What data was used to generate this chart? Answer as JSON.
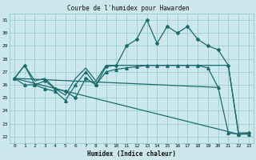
{
  "title": "Courbe de l'humidex pour Hawarden",
  "xlabel": "Humidex (Indice chaleur)",
  "bg_color": "#cce8ec",
  "grid_color": "#8ec8cc",
  "line_color": "#1a6b6e",
  "xlim": [
    -0.5,
    23.5
  ],
  "ylim": [
    21.5,
    31.5
  ],
  "yticks": [
    22,
    23,
    24,
    25,
    26,
    27,
    28,
    29,
    30,
    31
  ],
  "xticks": [
    0,
    1,
    2,
    3,
    4,
    5,
    6,
    7,
    8,
    9,
    10,
    11,
    12,
    13,
    14,
    15,
    16,
    17,
    18,
    19,
    20,
    21,
    22,
    23
  ],
  "series": [
    {
      "x": [
        0,
        1,
        2,
        3,
        4,
        5,
        6,
        7,
        8,
        9,
        10,
        11,
        12,
        13,
        14,
        15,
        16,
        17,
        18,
        19,
        20,
        21,
        22,
        23
      ],
      "y": [
        26.5,
        27.5,
        26.0,
        26.3,
        25.7,
        25.5,
        25.0,
        26.5,
        26.0,
        27.4,
        27.5,
        29.0,
        29.5,
        31.0,
        29.2,
        30.5,
        30.0,
        30.5,
        29.5,
        29.0,
        28.7,
        27.5,
        22.2,
        22.3
      ],
      "marker": "D",
      "markersize": 2.0,
      "linewidth": 0.9
    },
    {
      "x": [
        0,
        1,
        2,
        3,
        4,
        5,
        6,
        7,
        8,
        9,
        10,
        11,
        12,
        13,
        14,
        15,
        16,
        17,
        18,
        19,
        20,
        21,
        22,
        23
      ],
      "y": [
        26.5,
        27.5,
        26.3,
        26.5,
        25.7,
        25.2,
        26.5,
        27.3,
        26.3,
        27.5,
        27.5,
        27.5,
        27.5,
        27.5,
        27.5,
        27.5,
        27.5,
        27.5,
        27.5,
        27.5,
        27.5,
        27.5,
        22.3,
        22.3
      ],
      "marker": null,
      "markersize": 0,
      "linewidth": 0.9
    },
    {
      "x": [
        0,
        1,
        2,
        3,
        4,
        5,
        6,
        7,
        8,
        9,
        10,
        11,
        12,
        13,
        14,
        15,
        16,
        17,
        18,
        19,
        20,
        21,
        22,
        23
      ],
      "y": [
        26.5,
        26.0,
        26.0,
        25.7,
        25.5,
        24.8,
        26.0,
        27.0,
        26.0,
        27.0,
        27.2,
        27.3,
        27.4,
        27.5,
        27.5,
        27.5,
        27.5,
        27.5,
        27.5,
        27.3,
        25.8,
        22.3,
        22.2,
        22.2
      ],
      "marker": "^",
      "markersize": 2.5,
      "linewidth": 0.9
    },
    {
      "x": [
        0,
        20
      ],
      "y": [
        26.5,
        25.8
      ],
      "marker": null,
      "markersize": 0,
      "linewidth": 0.9
    },
    {
      "x": [
        0,
        22
      ],
      "y": [
        26.5,
        22.2
      ],
      "marker": null,
      "markersize": 0,
      "linewidth": 0.9
    }
  ]
}
